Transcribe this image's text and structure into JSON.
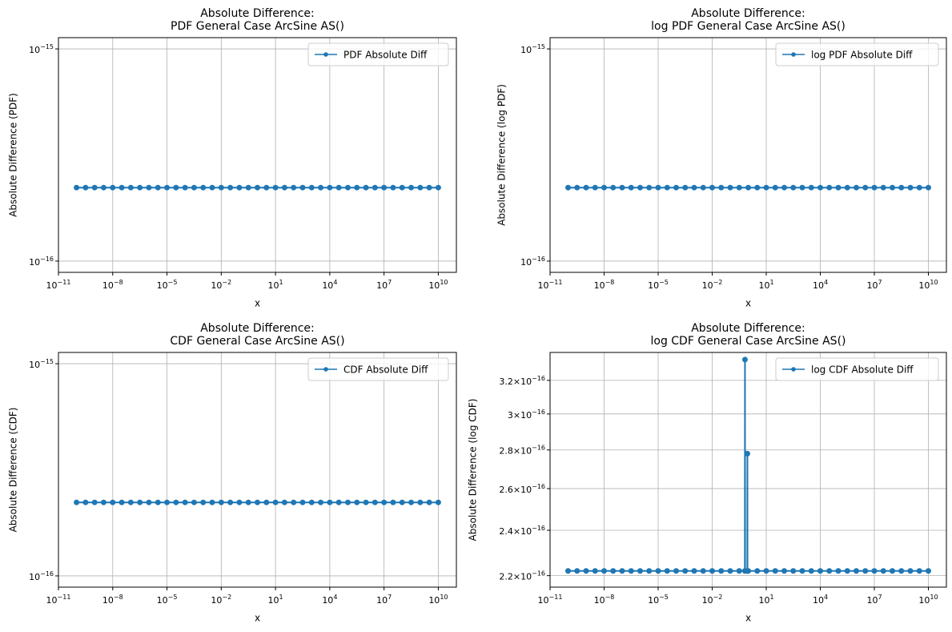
{
  "chart_data": [
    {
      "type": "line",
      "title": "Absolute Difference:\nPDF General Case ArcSine AS()",
      "xlabel": "x",
      "ylabel": "Absolute Difference (PDF)",
      "x": [
        1e-10,
        3.16e-10,
        1e-09,
        3.16e-09,
        1e-08,
        3.16e-08,
        1e-07,
        3.16e-07,
        1e-06,
        3.16e-06,
        1e-05,
        3.16e-05,
        0.0001,
        0.000316,
        0.001,
        0.00316,
        0.01,
        0.0316,
        0.1,
        0.316,
        1,
        3.16,
        10,
        31.6,
        100,
        316,
        1000,
        3160,
        10000.0,
        31600.0,
        100000.0,
        316000.0,
        1000000.0,
        3160000.0,
        10000000.0,
        31600000.0,
        100000000.0,
        316000000.0,
        1000000000.0,
        3160000000.0,
        10000000000.0
      ],
      "series": [
        {
          "name": "PDF Absolute Diff",
          "color": "#1f77b4",
          "values": [
            2.22e-16,
            2.22e-16,
            2.22e-16,
            2.22e-16,
            2.22e-16,
            2.22e-16,
            2.22e-16,
            2.22e-16,
            2.22e-16,
            2.22e-16,
            2.22e-16,
            2.22e-16,
            2.22e-16,
            2.22e-16,
            2.22e-16,
            2.22e-16,
            2.22e-16,
            2.22e-16,
            2.22e-16,
            2.22e-16,
            2.22e-16,
            2.22e-16,
            2.22e-16,
            2.22e-16,
            2.22e-16,
            2.22e-16,
            2.22e-16,
            2.22e-16,
            2.22e-16,
            2.22e-16,
            2.22e-16,
            2.22e-16,
            2.22e-16,
            2.22e-16,
            2.22e-16,
            2.22e-16,
            2.22e-16,
            2.22e-16,
            2.22e-16,
            2.22e-16,
            2.22e-16
          ]
        }
      ],
      "xlim": [
        1e-11,
        100000000000.0
      ],
      "ylim": [
        8.85e-17,
        1.13e-15
      ],
      "xscale": "log",
      "yscale": "log",
      "grid": true,
      "legend": "upper right",
      "xticks": [
        {
          "value": 1e-11,
          "label": "10−11"
        },
        {
          "value": 1e-08,
          "label": "10−8"
        },
        {
          "value": 1e-05,
          "label": "10−5"
        },
        {
          "value": 0.01,
          "label": "10−2"
        },
        {
          "value": 10,
          "label": "101"
        },
        {
          "value": 10000,
          "label": "104"
        },
        {
          "value": 10000000.0,
          "label": "107"
        },
        {
          "value": 10000000000.0,
          "label": "1010"
        }
      ],
      "yticks": [
        {
          "value": 1e-16,
          "label": "10−16"
        },
        {
          "value": 1e-15,
          "label": "10−15"
        }
      ]
    },
    {
      "type": "line",
      "title": "Absolute Difference:\nlog PDF General Case ArcSine AS()",
      "xlabel": "x",
      "ylabel": "Absolute Difference (log PDF)",
      "x": [
        1e-10,
        3.16e-10,
        1e-09,
        3.16e-09,
        1e-08,
        3.16e-08,
        1e-07,
        3.16e-07,
        1e-06,
        3.16e-06,
        1e-05,
        3.16e-05,
        0.0001,
        0.000316,
        0.001,
        0.00316,
        0.01,
        0.0316,
        0.1,
        0.316,
        1,
        3.16,
        10,
        31.6,
        100,
        316,
        1000,
        3160,
        10000.0,
        31600.0,
        100000.0,
        316000.0,
        1000000.0,
        3160000.0,
        10000000.0,
        31600000.0,
        100000000.0,
        316000000.0,
        1000000000.0,
        3160000000.0,
        10000000000.0
      ],
      "series": [
        {
          "name": "log PDF Absolute Diff",
          "color": "#1f77b4",
          "values": [
            2.22e-16,
            2.22e-16,
            2.22e-16,
            2.22e-16,
            2.22e-16,
            2.22e-16,
            2.22e-16,
            2.22e-16,
            2.22e-16,
            2.22e-16,
            2.22e-16,
            2.22e-16,
            2.22e-16,
            2.22e-16,
            2.22e-16,
            2.22e-16,
            2.22e-16,
            2.22e-16,
            2.22e-16,
            2.22e-16,
            2.22e-16,
            2.22e-16,
            2.22e-16,
            2.22e-16,
            2.22e-16,
            2.22e-16,
            2.22e-16,
            2.22e-16,
            2.22e-16,
            2.22e-16,
            2.22e-16,
            2.22e-16,
            2.22e-16,
            2.22e-16,
            2.22e-16,
            2.22e-16,
            2.22e-16,
            2.22e-16,
            2.22e-16,
            2.22e-16,
            2.22e-16
          ]
        }
      ],
      "xlim": [
        1e-11,
        100000000000.0
      ],
      "ylim": [
        8.85e-17,
        1.13e-15
      ],
      "xscale": "log",
      "yscale": "log",
      "grid": true,
      "legend": "upper right",
      "xticks": [
        {
          "value": 1e-11,
          "label": "10−11"
        },
        {
          "value": 1e-08,
          "label": "10−8"
        },
        {
          "value": 1e-05,
          "label": "10−5"
        },
        {
          "value": 0.01,
          "label": "10−2"
        },
        {
          "value": 10,
          "label": "101"
        },
        {
          "value": 10000,
          "label": "104"
        },
        {
          "value": 10000000.0,
          "label": "107"
        },
        {
          "value": 10000000000.0,
          "label": "1010"
        }
      ],
      "yticks": [
        {
          "value": 1e-16,
          "label": "10−16"
        },
        {
          "value": 1e-15,
          "label": "10−15"
        }
      ]
    },
    {
      "type": "line",
      "title": "Absolute Difference:\nCDF General Case ArcSine AS()",
      "xlabel": "x",
      "ylabel": "Absolute Difference (CDF)",
      "x": [
        1e-10,
        3.16e-10,
        1e-09,
        3.16e-09,
        1e-08,
        3.16e-08,
        1e-07,
        3.16e-07,
        1e-06,
        3.16e-06,
        1e-05,
        3.16e-05,
        0.0001,
        0.000316,
        0.001,
        0.00316,
        0.01,
        0.0316,
        0.1,
        0.316,
        1,
        3.16,
        10,
        31.6,
        100,
        316,
        1000,
        3160,
        10000.0,
        31600.0,
        100000.0,
        316000.0,
        1000000.0,
        3160000.0,
        10000000.0,
        31600000.0,
        100000000.0,
        316000000.0,
        1000000000.0,
        3160000000.0,
        10000000000.0
      ],
      "series": [
        {
          "name": "CDF Absolute Diff",
          "color": "#1f77b4",
          "values": [
            2.22e-16,
            2.22e-16,
            2.22e-16,
            2.22e-16,
            2.22e-16,
            2.22e-16,
            2.22e-16,
            2.22e-16,
            2.22e-16,
            2.22e-16,
            2.22e-16,
            2.22e-16,
            2.22e-16,
            2.22e-16,
            2.22e-16,
            2.22e-16,
            2.22e-16,
            2.22e-16,
            2.22e-16,
            2.22e-16,
            2.22e-16,
            2.22e-16,
            2.22e-16,
            2.22e-16,
            2.22e-16,
            2.22e-16,
            2.22e-16,
            2.22e-16,
            2.22e-16,
            2.22e-16,
            2.22e-16,
            2.22e-16,
            2.22e-16,
            2.22e-16,
            2.22e-16,
            2.22e-16,
            2.22e-16,
            2.22e-16,
            2.22e-16,
            2.22e-16,
            2.22e-16
          ]
        }
      ],
      "xlim": [
        1e-11,
        100000000000.0
      ],
      "ylim": [
        8.85e-17,
        1.13e-15
      ],
      "xscale": "log",
      "yscale": "log",
      "grid": true,
      "legend": "upper right",
      "xticks": [
        {
          "value": 1e-11,
          "label": "10−11"
        },
        {
          "value": 1e-08,
          "label": "10−8"
        },
        {
          "value": 1e-05,
          "label": "10−5"
        },
        {
          "value": 0.01,
          "label": "10−2"
        },
        {
          "value": 10,
          "label": "101"
        },
        {
          "value": 10000,
          "label": "104"
        },
        {
          "value": 10000000.0,
          "label": "107"
        },
        {
          "value": 10000000000.0,
          "label": "1010"
        }
      ],
      "yticks": [
        {
          "value": 1e-16,
          "label": "10−16"
        },
        {
          "value": 1e-15,
          "label": "10−15"
        }
      ]
    },
    {
      "type": "line",
      "title": "Absolute Difference:\nlog CDF General Case ArcSine AS()",
      "xlabel": "x",
      "ylabel": "Absolute Difference (log CDF)",
      "x": [
        1e-10,
        3.16e-10,
        1e-09,
        3.16e-09,
        1e-08,
        3.16e-08,
        1e-07,
        3.16e-07,
        1e-06,
        3.16e-06,
        1e-05,
        3.16e-05,
        0.0001,
        0.000316,
        0.001,
        0.00316,
        0.01,
        0.0316,
        0.1,
        0.316,
        0.65,
        0.66,
        0.67,
        0.89,
        0.9,
        0.91,
        1,
        3.16,
        10,
        31.6,
        100,
        316,
        1000,
        3160,
        10000.0,
        31600.0,
        100000.0,
        316000.0,
        1000000.0,
        3160000.0,
        10000000.0,
        31600000.0,
        100000000.0,
        316000000.0,
        1000000000.0,
        3160000000.0,
        10000000000.0
      ],
      "series": [
        {
          "name": "log CDF Absolute Diff",
          "color": "#1f77b4",
          "values": [
            2.22e-16,
            2.22e-16,
            2.22e-16,
            2.22e-16,
            2.22e-16,
            2.22e-16,
            2.22e-16,
            2.22e-16,
            2.22e-16,
            2.22e-16,
            2.22e-16,
            2.22e-16,
            2.22e-16,
            2.22e-16,
            2.22e-16,
            2.22e-16,
            2.22e-16,
            2.22e-16,
            2.22e-16,
            2.22e-16,
            2.22e-16,
            3.33e-16,
            2.22e-16,
            2.22e-16,
            2.78e-16,
            2.22e-16,
            2.22e-16,
            2.22e-16,
            2.22e-16,
            2.22e-16,
            2.22e-16,
            2.22e-16,
            2.22e-16,
            2.22e-16,
            2.22e-16,
            2.22e-16,
            2.22e-16,
            2.22e-16,
            2.22e-16,
            2.22e-16,
            2.22e-16,
            2.22e-16,
            2.22e-16,
            2.22e-16,
            2.22e-16,
            2.22e-16,
            2.22e-16
          ]
        }
      ],
      "xlim": [
        1e-11,
        100000000000.0
      ],
      "ylim": [
        2.152e-16,
        3.376e-16
      ],
      "xscale": "log",
      "yscale": "log",
      "grid": true,
      "legend": "upper right",
      "xticks": [
        {
          "value": 1e-11,
          "label": "10−11"
        },
        {
          "value": 1e-08,
          "label": "10−8"
        },
        {
          "value": 1e-05,
          "label": "10−5"
        },
        {
          "value": 0.01,
          "label": "10−2"
        },
        {
          "value": 10,
          "label": "101"
        },
        {
          "value": 10000,
          "label": "104"
        },
        {
          "value": 10000000.0,
          "label": "107"
        },
        {
          "value": 10000000000.0,
          "label": "1010"
        }
      ],
      "yticks": [
        {
          "value": 2.2e-16,
          "label": "2.2×10−16"
        },
        {
          "value": 2.4e-16,
          "label": "2.4×10−16"
        },
        {
          "value": 2.6e-16,
          "label": "2.6×10−16"
        },
        {
          "value": 2.8e-16,
          "label": "2.8×10−16"
        },
        {
          "value": 3e-16,
          "label": "3×10−16"
        },
        {
          "value": 3.2e-16,
          "label": "3.2×10−16"
        }
      ]
    }
  ]
}
